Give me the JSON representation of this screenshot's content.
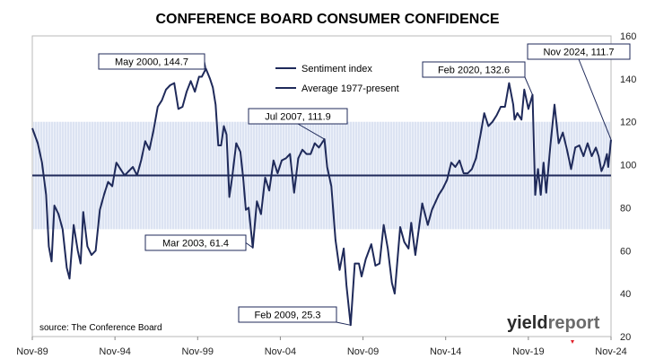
{
  "chart_data": {
    "type": "line",
    "title": "CONFERENCE BOARD CONSUMER CONFIDENCE",
    "ylim": [
      20,
      160
    ],
    "y_ticks": [
      20,
      40,
      60,
      80,
      100,
      120,
      140,
      160
    ],
    "x_ticks": [
      "Nov-89",
      "Nov-94",
      "Nov-99",
      "Nov-04",
      "Nov-09",
      "Nov-14",
      "Nov-19",
      "Nov-24"
    ],
    "x_range": [
      "1989-11",
      "2024-11"
    ],
    "band": [
      70,
      120
    ],
    "grid": false,
    "legend_position": "top-center",
    "series": [
      {
        "name": "Sentiment index",
        "color": "#1f2a5a",
        "points": [
          [
            "1989-11",
            117
          ],
          [
            "1990-03",
            110
          ],
          [
            "1990-06",
            101
          ],
          [
            "1990-09",
            86
          ],
          [
            "1990-11",
            62
          ],
          [
            "1991-01",
            55
          ],
          [
            "1991-03",
            81
          ],
          [
            "1991-06",
            77
          ],
          [
            "1991-09",
            70
          ],
          [
            "1991-12",
            52
          ],
          [
            "1992-02",
            47
          ],
          [
            "1992-05",
            72
          ],
          [
            "1992-08",
            60
          ],
          [
            "1992-10",
            54
          ],
          [
            "1992-12",
            78
          ],
          [
            "1993-03",
            62
          ],
          [
            "1993-06",
            58
          ],
          [
            "1993-09",
            60
          ],
          [
            "1993-12",
            79
          ],
          [
            "1994-03",
            86
          ],
          [
            "1994-06",
            92
          ],
          [
            "1994-09",
            90
          ],
          [
            "1994-12",
            101
          ],
          [
            "1995-03",
            98
          ],
          [
            "1995-06",
            95
          ],
          [
            "1995-09",
            97
          ],
          [
            "1995-12",
            99
          ],
          [
            "1996-03",
            95
          ],
          [
            "1996-06",
            102
          ],
          [
            "1996-09",
            111
          ],
          [
            "1996-12",
            107
          ],
          [
            "1997-03",
            116
          ],
          [
            "1997-06",
            127
          ],
          [
            "1997-09",
            130
          ],
          [
            "1997-12",
            135
          ],
          [
            "1998-03",
            137
          ],
          [
            "1998-06",
            138
          ],
          [
            "1998-09",
            126
          ],
          [
            "1998-12",
            127
          ],
          [
            "1999-03",
            134
          ],
          [
            "1999-06",
            139
          ],
          [
            "1999-09",
            134
          ],
          [
            "1999-12",
            141
          ],
          [
            "2000-02",
            141
          ],
          [
            "2000-05",
            144.7
          ],
          [
            "2000-08",
            140
          ],
          [
            "2000-10",
            136
          ],
          [
            "2000-12",
            128
          ],
          [
            "2001-02",
            109
          ],
          [
            "2001-04",
            109
          ],
          [
            "2001-06",
            118
          ],
          [
            "2001-08",
            114
          ],
          [
            "2001-10",
            85
          ],
          [
            "2001-12",
            94
          ],
          [
            "2002-03",
            110
          ],
          [
            "2002-06",
            106
          ],
          [
            "2002-08",
            94
          ],
          [
            "2002-10",
            79
          ],
          [
            "2002-12",
            80
          ],
          [
            "2003-03",
            61.4
          ],
          [
            "2003-06",
            83
          ],
          [
            "2003-09",
            77
          ],
          [
            "2003-12",
            94
          ],
          [
            "2004-03",
            88
          ],
          [
            "2004-06",
            102
          ],
          [
            "2004-09",
            96
          ],
          [
            "2004-12",
            102
          ],
          [
            "2005-03",
            103
          ],
          [
            "2005-06",
            105
          ],
          [
            "2005-09",
            87
          ],
          [
            "2005-12",
            103
          ],
          [
            "2006-03",
            107
          ],
          [
            "2006-06",
            105
          ],
          [
            "2006-09",
            105
          ],
          [
            "2006-12",
            110
          ],
          [
            "2007-03",
            108
          ],
          [
            "2007-07",
            111.9
          ],
          [
            "2007-09",
            99
          ],
          [
            "2007-12",
            90
          ],
          [
            "2008-03",
            65
          ],
          [
            "2008-06",
            51
          ],
          [
            "2008-09",
            61
          ],
          [
            "2008-11",
            44
          ],
          [
            "2009-02",
            25.3
          ],
          [
            "2009-05",
            54
          ],
          [
            "2009-08",
            54
          ],
          [
            "2009-10",
            48
          ],
          [
            "2010-01",
            56
          ],
          [
            "2010-05",
            63
          ],
          [
            "2010-08",
            53
          ],
          [
            "2010-11",
            54
          ],
          [
            "2011-02",
            72
          ],
          [
            "2011-05",
            61
          ],
          [
            "2011-08",
            45
          ],
          [
            "2011-10",
            40
          ],
          [
            "2012-02",
            71
          ],
          [
            "2012-05",
            64
          ],
          [
            "2012-08",
            61
          ],
          [
            "2012-10",
            73
          ],
          [
            "2013-01",
            58
          ],
          [
            "2013-06",
            82
          ],
          [
            "2013-10",
            72
          ],
          [
            "2014-01",
            79
          ],
          [
            "2014-06",
            86
          ],
          [
            "2014-09",
            89
          ],
          [
            "2014-12",
            93
          ],
          [
            "2015-03",
            101
          ],
          [
            "2015-06",
            99
          ],
          [
            "2015-09",
            102
          ],
          [
            "2015-12",
            96
          ],
          [
            "2016-03",
            96
          ],
          [
            "2016-06",
            98
          ],
          [
            "2016-09",
            103
          ],
          [
            "2016-12",
            113
          ],
          [
            "2017-03",
            124
          ],
          [
            "2017-06",
            118
          ],
          [
            "2017-09",
            120
          ],
          [
            "2017-12",
            123
          ],
          [
            "2018-03",
            127
          ],
          [
            "2018-06",
            127
          ],
          [
            "2018-09",
            138
          ],
          [
            "2018-12",
            128
          ],
          [
            "2019-01",
            121
          ],
          [
            "2019-03",
            124
          ],
          [
            "2019-06",
            121
          ],
          [
            "2019-08",
            135
          ],
          [
            "2019-11",
            126
          ],
          [
            "2020-02",
            132.6
          ],
          [
            "2020-04",
            86
          ],
          [
            "2020-06",
            98
          ],
          [
            "2020-08",
            86
          ],
          [
            "2020-10",
            101
          ],
          [
            "2020-12",
            87
          ],
          [
            "2021-03",
            109
          ],
          [
            "2021-06",
            128
          ],
          [
            "2021-09",
            110
          ],
          [
            "2021-12",
            115
          ],
          [
            "2022-03",
            107
          ],
          [
            "2022-06",
            98
          ],
          [
            "2022-09",
            108
          ],
          [
            "2022-12",
            109
          ],
          [
            "2023-03",
            104
          ],
          [
            "2023-06",
            110
          ],
          [
            "2023-09",
            104
          ],
          [
            "2023-12",
            108
          ],
          [
            "2024-02",
            104
          ],
          [
            "2024-04",
            97
          ],
          [
            "2024-06",
            100
          ],
          [
            "2024-08",
            105
          ],
          [
            "2024-09",
            99
          ],
          [
            "2024-11",
            111.7
          ]
        ]
      },
      {
        "name": "Average 1977-present",
        "color": "#1f2a5a",
        "value": 95
      }
    ],
    "annotations": [
      {
        "label": "May 2000, 144.7",
        "x": "2000-05",
        "y": 144.7
      },
      {
        "label": "Mar 2003, 61.4",
        "x": "2003-03",
        "y": 61.4
      },
      {
        "label": "Jul 2007, 111.9",
        "x": "2007-07",
        "y": 111.9
      },
      {
        "label": "Feb 2009, 25.3",
        "x": "2009-02",
        "y": 25.3
      },
      {
        "label": "Feb 2020, 132.6",
        "x": "2020-02",
        "y": 132.6
      },
      {
        "label": "Nov 2024, 111.7",
        "x": "2024-11",
        "y": 111.7
      }
    ],
    "source": "source: The Conference Board"
  },
  "branding": {
    "name_part1": "yield",
    "name_part2": "report"
  }
}
